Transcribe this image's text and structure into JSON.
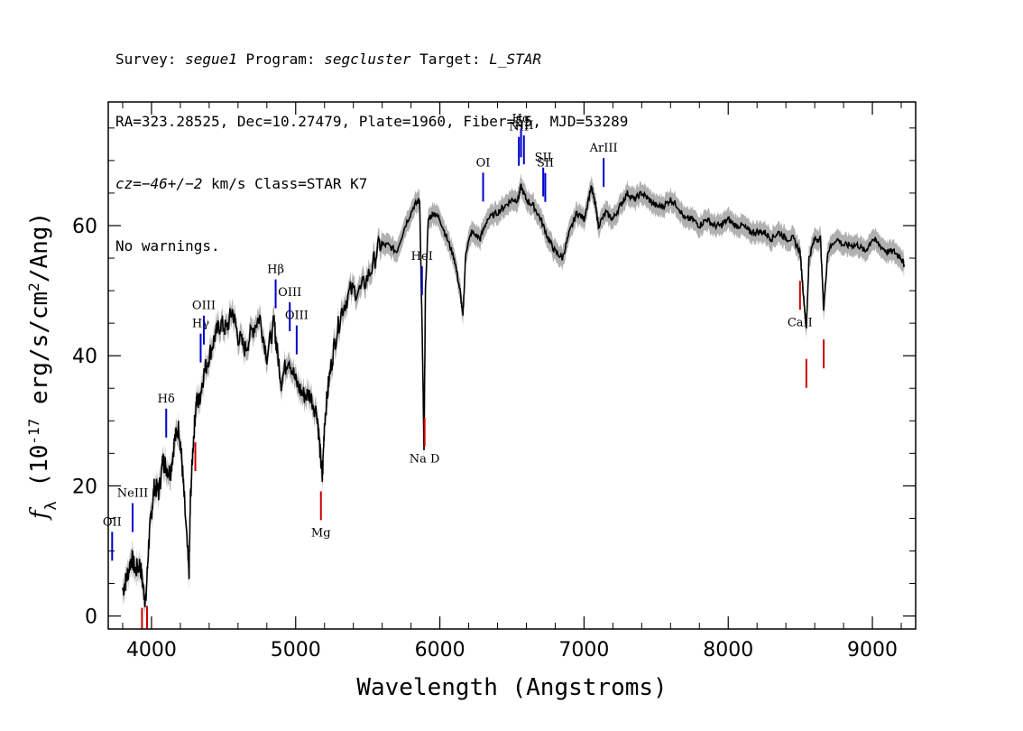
{
  "header": {
    "line1": {
      "a": "Survey: ",
      "survey": "segue1",
      "b": " Program: ",
      "program": "segcluster",
      "c": " Target: ",
      "target": "L_STAR"
    },
    "line2": "RA=323.28525, Dec=10.27479, Plate=1960, Fiber=55, MJD=53289",
    "line3": {
      "cz": "cz=−46+/−2",
      "rest": " km/s Class=STAR K7"
    },
    "line4": "No warnings."
  },
  "chart_data": {
    "type": "line",
    "title": "",
    "xlabel": "Wavelength (Angstroms)",
    "ylabel": "f_λ (10^-17 erg/s/cm^2/Ang)",
    "xlim": [
      3700,
      9300
    ],
    "ylim": [
      -2,
      79
    ],
    "x_ticks": [
      4000,
      5000,
      6000,
      7000,
      8000,
      9000
    ],
    "y_ticks": [
      0,
      20,
      40,
      60
    ],
    "grid": false,
    "series": [
      {
        "color": "#000000",
        "error_band_color": "#b0b0b0",
        "x": [
          3800,
          3830,
          3860,
          3890,
          3920,
          3945,
          3960,
          3980,
          4000,
          4020,
          4050,
          4080,
          4100,
          4130,
          4160,
          4190,
          4210,
          4230,
          4260,
          4270,
          4290,
          4310,
          4330,
          4360,
          4400,
          4440,
          4480,
          4520,
          4560,
          4600,
          4650,
          4700,
          4750,
          4800,
          4850,
          4870,
          4900,
          4950,
          5000,
          5050,
          5100,
          5150,
          5170,
          5185,
          5200,
          5230,
          5270,
          5320,
          5380,
          5450,
          5520,
          5580,
          5640,
          5700,
          5760,
          5820,
          5860,
          5880,
          5890,
          5900,
          5920,
          5960,
          6000,
          6050,
          6100,
          6140,
          6160,
          6180,
          6220,
          6280,
          6330,
          6400,
          6450,
          6500,
          6540,
          6563,
          6600,
          6650,
          6700,
          6750,
          6800,
          6850,
          6900,
          6950,
          7000,
          7050,
          7080,
          7100,
          7150,
          7200,
          7250,
          7300,
          7350,
          7400,
          7450,
          7500,
          7550,
          7600,
          7650,
          7700,
          7750,
          7800,
          7850,
          7900,
          7950,
          8000,
          8050,
          8100,
          8150,
          8200,
          8250,
          8300,
          8350,
          8400,
          8450,
          8498,
          8520,
          8542,
          8560,
          8600,
          8640,
          8662,
          8690,
          8750,
          8800,
          8850,
          8900,
          8950,
          9000,
          9050,
          9100,
          9150,
          9200,
          9220
        ],
        "y": [
          4,
          6,
          9,
          7,
          8,
          4,
          2,
          11,
          16,
          20,
          19,
          24,
          23,
          22,
          27,
          29,
          24,
          17,
          6,
          18,
          27,
          33,
          33,
          37,
          40,
          43,
          45,
          44,
          47,
          43,
          41,
          44,
          46,
          40,
          45,
          41,
          36,
          40,
          36,
          34,
          34,
          31,
          25,
          21,
          30,
          36,
          42,
          47,
          50,
          50,
          53,
          57,
          57,
          56,
          60,
          63,
          64,
          40,
          25,
          50,
          61,
          62,
          61,
          58,
          55,
          50,
          46,
          56,
          59,
          58,
          61,
          62,
          63,
          64,
          64,
          66,
          64,
          63,
          61,
          58,
          56,
          55,
          59,
          62,
          61,
          66,
          63,
          60,
          62,
          61,
          63,
          65,
          64,
          65,
          64,
          63,
          63,
          64,
          63,
          61,
          61,
          60,
          61,
          60,
          60,
          61,
          60,
          60,
          59,
          59,
          59,
          58,
          59,
          58,
          58,
          56,
          50,
          44,
          55,
          58,
          58,
          47,
          56,
          58,
          57,
          57,
          57,
          56,
          58,
          57,
          56,
          56,
          55,
          54
        ]
      }
    ],
    "emission_lines": [
      {
        "label": "OII",
        "x": 3727
      },
      {
        "label": "NeIII",
        "x": 3869
      },
      {
        "label": "Hδ",
        "x": 4102
      },
      {
        "label": "Hγ",
        "x": 4341
      },
      {
        "label": "OIII",
        "x": 4363
      },
      {
        "label": "Hβ",
        "x": 4861
      },
      {
        "label": "OIII",
        "x": 4959
      },
      {
        "label": "OIII",
        "x": 5007
      },
      {
        "label": "HeI",
        "x": 5876
      },
      {
        "label": "OI",
        "x": 6300
      },
      {
        "label": "NII",
        "x": 6548
      },
      {
        "label": "Hα",
        "x": 6563
      },
      {
        "label": "NII",
        "x": 6583
      },
      {
        "label": "SII",
        "x": 6717
      },
      {
        "label": "SII",
        "x": 6731
      },
      {
        "label": "ArIII",
        "x": 7136
      }
    ],
    "absorption_lines": [
      {
        "label": "",
        "x": 3934
      },
      {
        "label": "",
        "x": 3969
      },
      {
        "label": "",
        "x": 4304
      },
      {
        "label": "Mg",
        "x": 5175
      },
      {
        "label": "Na D",
        "x": 5894
      },
      {
        "label": "CaII",
        "x": 8498
      },
      {
        "label": "",
        "x": 8542
      },
      {
        "label": "",
        "x": 8662
      }
    ],
    "colors": {
      "emission": "#0000cc",
      "absorption": "#cc0000"
    }
  }
}
